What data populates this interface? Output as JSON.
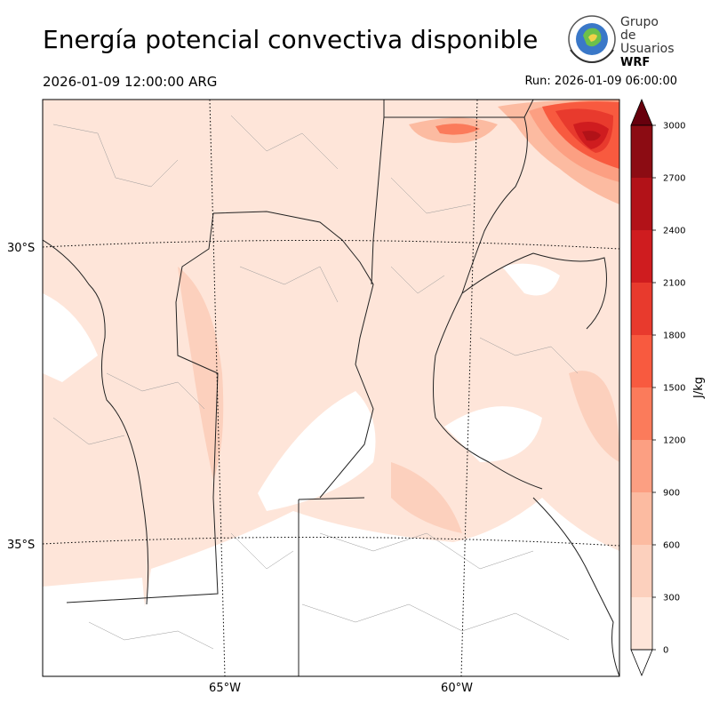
{
  "header": {
    "title": "Energía potencial convectiva disponible",
    "valid_time": "2026-01-09 12:00:00 ARG",
    "run_time": "Run: 2026-01-09 06:00:00"
  },
  "logo": {
    "line1": "Grupo de",
    "line2": "Usuarios",
    "line3": "WRF"
  },
  "map": {
    "variable": "CAPE",
    "lat_labels": [
      "30°S",
      "35°S"
    ],
    "lon_labels": [
      "65°W",
      "60°W"
    ]
  },
  "colorbar": {
    "unit": "J/kg",
    "ticks": [
      "0",
      "300",
      "600",
      "900",
      "1200",
      "1500",
      "1800",
      "2100",
      "2400",
      "2700",
      "3000"
    ],
    "colors": [
      "#fee5d9",
      "#fcd0bd",
      "#fcbba1",
      "#fc9f82",
      "#fb7b5b",
      "#f85a3f",
      "#e83a2d",
      "#cf1c1f",
      "#b21218",
      "#8c0c13"
    ],
    "extend_max_color": "#67000d",
    "extend_min_color": "#ffffff"
  }
}
